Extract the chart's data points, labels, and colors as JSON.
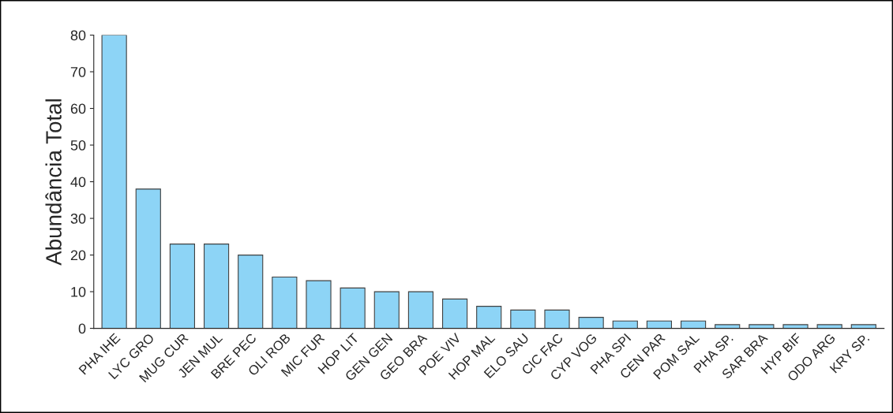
{
  "chart_data": {
    "type": "bar",
    "ylabel": "Abundância Total",
    "categories": [
      "PHA IHE",
      "LYC GRO",
      "MUG CUR",
      "JEN MUL",
      "BRE PEC",
      "OLI ROB",
      "MIC FUR",
      "HOP LIT",
      "GEN GEN",
      "GEO BRA",
      "POE VIV",
      "HOP MAL",
      "ELO SAU",
      "CIC FAC",
      "CYP VOG",
      "PHA SPI",
      "CEN PAR",
      "POM SAL",
      "PHA SP.",
      "SAR BRA",
      "HYP BIF",
      "ODO ARG",
      "KRY SP."
    ],
    "values": [
      80,
      38,
      23,
      23,
      20,
      14,
      13,
      11,
      10,
      10,
      8,
      6,
      5,
      5,
      3,
      2,
      2,
      2,
      1,
      1,
      1,
      1,
      1
    ],
    "color": "#8dd4f6",
    "ylim": [
      0,
      80
    ],
    "yticks": [
      0,
      10,
      20,
      30,
      40,
      50,
      60,
      70,
      80
    ],
    "grid": false
  }
}
